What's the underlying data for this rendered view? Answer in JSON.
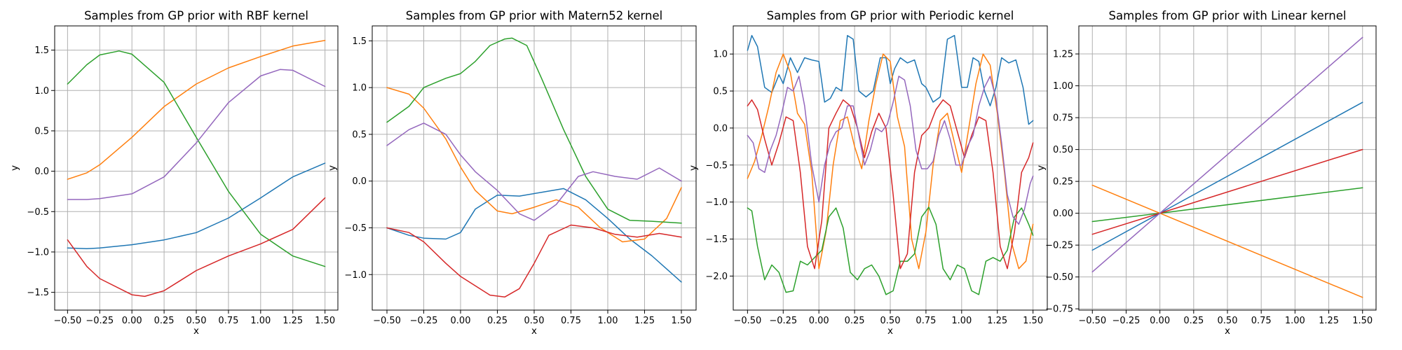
{
  "chart_data": [
    {
      "type": "line",
      "title": "Samples from GP prior with RBF kernel",
      "xlabel": "x",
      "ylabel": "y",
      "xlim": [
        -0.6,
        1.6
      ],
      "ylim": [
        -1.72,
        1.8
      ],
      "xticks": [
        -0.5,
        -0.25,
        0.0,
        0.25,
        0.5,
        0.75,
        1.0,
        1.25,
        1.5
      ],
      "xtick_labels": [
        "−0.50",
        "−0.25",
        "0.00",
        "0.25",
        "0.50",
        "0.75",
        "1.00",
        "1.25",
        "1.50"
      ],
      "yticks": [
        -1.5,
        -1.0,
        -0.5,
        0.0,
        0.5,
        1.0,
        1.5
      ],
      "ytick_labels": [
        "−1.5",
        "−1.0",
        "−0.5",
        "0.0",
        "0.5",
        "1.0",
        "1.5"
      ],
      "grid": true,
      "series": [
        {
          "color": "#1f77b4",
          "x": [
            -0.5,
            -0.35,
            -0.25,
            0.0,
            0.25,
            0.5,
            0.75,
            1.0,
            1.25,
            1.5
          ],
          "y": [
            -0.95,
            -0.96,
            -0.95,
            -0.91,
            -0.85,
            -0.76,
            -0.58,
            -0.33,
            -0.07,
            0.1
          ]
        },
        {
          "color": "#ff7f0e",
          "x": [
            -0.5,
            -0.35,
            -0.25,
            0.0,
            0.25,
            0.5,
            0.75,
            1.0,
            1.25,
            1.5
          ],
          "y": [
            -0.1,
            -0.02,
            0.08,
            0.42,
            0.8,
            1.08,
            1.28,
            1.42,
            1.55,
            1.62
          ]
        },
        {
          "color": "#2ca02c",
          "x": [
            -0.5,
            -0.35,
            -0.25,
            -0.1,
            0.0,
            0.25,
            0.5,
            0.75,
            1.0,
            1.25,
            1.5
          ],
          "y": [
            1.08,
            1.32,
            1.44,
            1.49,
            1.45,
            1.1,
            0.42,
            -0.25,
            -0.78,
            -1.05,
            -1.18
          ]
        },
        {
          "color": "#d62728",
          "x": [
            -0.5,
            -0.35,
            -0.25,
            0.0,
            0.1,
            0.25,
            0.5,
            0.75,
            1.0,
            1.25,
            1.5
          ],
          "y": [
            -0.85,
            -1.18,
            -1.33,
            -1.53,
            -1.55,
            -1.48,
            -1.23,
            -1.05,
            -0.9,
            -0.72,
            -0.33
          ]
        },
        {
          "color": "#9467bd",
          "x": [
            -0.5,
            -0.35,
            -0.25,
            0.0,
            0.25,
            0.5,
            0.75,
            1.0,
            1.15,
            1.25,
            1.5
          ],
          "y": [
            -0.35,
            -0.35,
            -0.34,
            -0.28,
            -0.07,
            0.35,
            0.85,
            1.18,
            1.26,
            1.25,
            1.05
          ]
        }
      ]
    },
    {
      "type": "line",
      "title": "Samples from GP prior with Matern52 kernel",
      "xlabel": "x",
      "ylabel": "y",
      "xlim": [
        -0.6,
        1.6
      ],
      "ylim": [
        -1.38,
        1.66
      ],
      "xticks": [
        -0.5,
        -0.25,
        0.0,
        0.25,
        0.5,
        0.75,
        1.0,
        1.25,
        1.5
      ],
      "xtick_labels": [
        "−0.50",
        "−0.25",
        "0.00",
        "0.25",
        "0.50",
        "0.75",
        "1.00",
        "1.25",
        "1.50"
      ],
      "yticks": [
        -1.0,
        -0.5,
        0.0,
        0.5,
        1.0,
        1.5
      ],
      "ytick_labels": [
        "−1.0",
        "−0.5",
        "0.0",
        "0.5",
        "1.0",
        "1.5"
      ],
      "grid": true,
      "series": [
        {
          "color": "#1f77b4",
          "x": [
            -0.5,
            -0.35,
            -0.25,
            -0.1,
            0.0,
            0.1,
            0.25,
            0.4,
            0.55,
            0.7,
            0.85,
            1.0,
            1.15,
            1.3,
            1.5
          ],
          "y": [
            -0.5,
            -0.58,
            -0.61,
            -0.62,
            -0.55,
            -0.3,
            -0.15,
            -0.16,
            -0.12,
            -0.08,
            -0.2,
            -0.4,
            -0.62,
            -0.8,
            -1.08
          ]
        },
        {
          "color": "#ff7f0e",
          "x": [
            -0.5,
            -0.35,
            -0.25,
            -0.1,
            0.0,
            0.1,
            0.25,
            0.35,
            0.5,
            0.65,
            0.8,
            0.95,
            1.1,
            1.25,
            1.4,
            1.5
          ],
          "y": [
            1.0,
            0.93,
            0.78,
            0.45,
            0.15,
            -0.1,
            -0.32,
            -0.35,
            -0.28,
            -0.2,
            -0.28,
            -0.5,
            -0.65,
            -0.62,
            -0.4,
            -0.07
          ]
        },
        {
          "color": "#2ca02c",
          "x": [
            -0.5,
            -0.35,
            -0.25,
            -0.1,
            0.0,
            0.1,
            0.2,
            0.3,
            0.35,
            0.45,
            0.55,
            0.7,
            0.85,
            1.0,
            1.15,
            1.3,
            1.5
          ],
          "y": [
            0.63,
            0.8,
            1.0,
            1.1,
            1.15,
            1.28,
            1.45,
            1.52,
            1.53,
            1.45,
            1.1,
            0.55,
            0.05,
            -0.3,
            -0.42,
            -0.43,
            -0.45
          ]
        },
        {
          "color": "#d62728",
          "x": [
            -0.5,
            -0.35,
            -0.25,
            -0.1,
            0.0,
            0.1,
            0.2,
            0.3,
            0.4,
            0.5,
            0.6,
            0.75,
            0.9,
            1.05,
            1.2,
            1.35,
            1.5
          ],
          "y": [
            -0.5,
            -0.55,
            -0.65,
            -0.88,
            -1.02,
            -1.12,
            -1.22,
            -1.24,
            -1.15,
            -0.88,
            -0.58,
            -0.47,
            -0.5,
            -0.57,
            -0.6,
            -0.56,
            -0.6
          ]
        },
        {
          "color": "#9467bd",
          "x": [
            -0.5,
            -0.35,
            -0.25,
            -0.1,
            0.0,
            0.1,
            0.25,
            0.4,
            0.5,
            0.65,
            0.8,
            0.9,
            1.05,
            1.2,
            1.35,
            1.5
          ],
          "y": [
            0.38,
            0.55,
            0.62,
            0.5,
            0.28,
            0.1,
            -0.1,
            -0.35,
            -0.42,
            -0.25,
            0.05,
            0.1,
            0.05,
            0.02,
            0.14,
            0.0
          ]
        }
      ]
    },
    {
      "type": "line",
      "title": "Samples from GP prior with Periodic kernel",
      "xlabel": "x",
      "ylabel": "y",
      "xlim": [
        -0.6,
        1.6
      ],
      "ylim": [
        -2.46,
        1.38
      ],
      "xticks": [
        -0.5,
        -0.25,
        0.0,
        0.25,
        0.5,
        0.75,
        1.0,
        1.25,
        1.5
      ],
      "xtick_labels": [
        "−0.50",
        "−0.25",
        "0.00",
        "0.25",
        "0.50",
        "0.75",
        "1.00",
        "1.25",
        "1.50"
      ],
      "yticks": [
        -2.0,
        -1.5,
        -1.0,
        -0.5,
        0.0,
        0.5,
        1.0
      ],
      "ytick_labels": [
        "−2.0",
        "−1.5",
        "−1.0",
        "−0.5",
        "0.0",
        "0.5",
        "1.0"
      ],
      "grid": true,
      "series": [
        {
          "color": "#1f77b4",
          "x": [
            -0.5,
            -0.47,
            -0.43,
            -0.38,
            -0.33,
            -0.28,
            -0.25,
            -0.2,
            -0.15,
            -0.1,
            -0.05,
            0.0,
            0.04,
            0.08,
            0.12,
            0.16,
            0.2,
            0.24,
            0.28,
            0.33,
            0.38,
            0.43,
            0.47,
            0.5,
            0.53,
            0.57,
            0.62,
            0.67,
            0.72,
            0.75,
            0.8,
            0.85,
            0.9,
            0.95,
            1.0,
            1.04,
            1.08,
            1.12,
            1.16,
            1.2,
            1.24,
            1.28,
            1.33,
            1.38,
            1.43,
            1.47,
            1.5
          ],
          "y": [
            1.05,
            1.25,
            1.1,
            0.55,
            0.48,
            0.72,
            0.6,
            0.95,
            0.75,
            0.95,
            0.92,
            0.9,
            0.35,
            0.4,
            0.55,
            0.5,
            1.25,
            1.2,
            0.5,
            0.42,
            0.5,
            0.95,
            0.95,
            0.6,
            0.8,
            0.95,
            0.88,
            0.92,
            0.6,
            0.55,
            0.35,
            0.42,
            1.2,
            1.25,
            0.55,
            0.55,
            0.95,
            0.9,
            0.5,
            0.3,
            0.55,
            0.95,
            0.88,
            0.92,
            0.55,
            0.05,
            0.1
          ]
        },
        {
          "color": "#ff7f0e",
          "x": [
            -0.5,
            -0.45,
            -0.4,
            -0.35,
            -0.3,
            -0.25,
            -0.2,
            -0.15,
            -0.1,
            -0.05,
            0.0,
            0.05,
            0.1,
            0.15,
            0.2,
            0.25,
            0.3,
            0.35,
            0.4,
            0.45,
            0.5,
            0.55,
            0.6,
            0.65,
            0.7,
            0.75,
            0.8,
            0.85,
            0.9,
            0.95,
            1.0,
            1.05,
            1.1,
            1.15,
            1.2,
            1.25,
            1.3,
            1.35,
            1.4,
            1.45,
            1.5
          ],
          "y": [
            -0.68,
            -0.45,
            -0.1,
            0.3,
            0.75,
            1.0,
            0.75,
            0.2,
            0.05,
            -0.6,
            -1.9,
            -1.4,
            -0.5,
            0.1,
            0.15,
            -0.25,
            -0.55,
            0.1,
            0.6,
            1.0,
            0.9,
            0.15,
            -0.25,
            -1.5,
            -1.9,
            -1.4,
            -0.5,
            0.1,
            0.2,
            -0.2,
            -0.6,
            0.0,
            0.6,
            1.0,
            0.85,
            0.2,
            -0.6,
            -1.55,
            -1.9,
            -1.8,
            -1.3
          ]
        },
        {
          "color": "#2ca02c",
          "x": [
            -0.5,
            -0.47,
            -0.43,
            -0.38,
            -0.33,
            -0.28,
            -0.23,
            -0.18,
            -0.13,
            -0.08,
            -0.03,
            0.02,
            0.07,
            0.12,
            0.17,
            0.22,
            0.27,
            0.32,
            0.37,
            0.42,
            0.47,
            0.52,
            0.57,
            0.62,
            0.67,
            0.72,
            0.77,
            0.82,
            0.87,
            0.92,
            0.97,
            1.02,
            1.07,
            1.12,
            1.17,
            1.22,
            1.27,
            1.32,
            1.37,
            1.42,
            1.47,
            1.5
          ],
          "y": [
            -1.08,
            -1.12,
            -1.6,
            -2.05,
            -1.85,
            -1.95,
            -2.22,
            -2.2,
            -1.8,
            -1.85,
            -1.75,
            -1.65,
            -1.2,
            -1.08,
            -1.35,
            -1.95,
            -2.05,
            -1.9,
            -1.85,
            -2.0,
            -2.25,
            -2.2,
            -1.8,
            -1.8,
            -1.7,
            -1.2,
            -1.07,
            -1.3,
            -1.9,
            -2.05,
            -1.85,
            -1.9,
            -2.2,
            -2.25,
            -1.8,
            -1.75,
            -1.8,
            -1.65,
            -1.2,
            -1.08,
            -1.3,
            -1.45
          ]
        },
        {
          "color": "#d62728",
          "x": [
            -0.5,
            -0.47,
            -0.43,
            -0.38,
            -0.33,
            -0.28,
            -0.23,
            -0.18,
            -0.13,
            -0.08,
            -0.03,
            0.02,
            0.07,
            0.12,
            0.17,
            0.22,
            0.27,
            0.32,
            0.37,
            0.42,
            0.47,
            0.52,
            0.57,
            0.62,
            0.67,
            0.72,
            0.77,
            0.82,
            0.87,
            0.92,
            0.97,
            1.02,
            1.07,
            1.12,
            1.17,
            1.22,
            1.27,
            1.32,
            1.37,
            1.42,
            1.47,
            1.5
          ],
          "y": [
            0.3,
            0.38,
            0.25,
            -0.15,
            -0.5,
            -0.2,
            0.15,
            0.1,
            -0.6,
            -1.6,
            -1.9,
            -1.25,
            0.0,
            0.2,
            0.38,
            0.3,
            0.0,
            -0.4,
            -0.05,
            0.2,
            0.0,
            -0.9,
            -1.9,
            -1.7,
            -0.6,
            -0.1,
            0.0,
            0.25,
            0.38,
            0.3,
            -0.05,
            -0.4,
            -0.1,
            0.15,
            0.1,
            -0.6,
            -1.6,
            -1.9,
            -1.4,
            -0.6,
            -0.4,
            -0.2
          ]
        },
        {
          "color": "#9467bd",
          "x": [
            -0.5,
            -0.46,
            -0.42,
            -0.38,
            -0.34,
            -0.3,
            -0.26,
            -0.22,
            -0.18,
            -0.14,
            -0.1,
            -0.05,
            0.0,
            0.04,
            0.08,
            0.12,
            0.16,
            0.2,
            0.24,
            0.28,
            0.32,
            0.36,
            0.4,
            0.44,
            0.48,
            0.52,
            0.56,
            0.6,
            0.64,
            0.68,
            0.72,
            0.76,
            0.8,
            0.84,
            0.88,
            0.92,
            0.96,
            1.0,
            1.04,
            1.08,
            1.12,
            1.16,
            1.2,
            1.24,
            1.28,
            1.32,
            1.36,
            1.4,
            1.44,
            1.48,
            1.5
          ],
          "y": [
            -0.1,
            -0.2,
            -0.55,
            -0.6,
            -0.3,
            -0.1,
            0.2,
            0.55,
            0.5,
            0.7,
            0.3,
            -0.5,
            -1.0,
            -0.5,
            -0.2,
            -0.05,
            0.0,
            0.3,
            0.3,
            -0.1,
            -0.5,
            -0.3,
            0.0,
            -0.05,
            0.05,
            0.35,
            0.7,
            0.65,
            0.3,
            -0.3,
            -0.55,
            -0.55,
            -0.45,
            -0.1,
            0.1,
            -0.15,
            -0.5,
            -0.5,
            -0.25,
            -0.1,
            0.3,
            0.55,
            0.7,
            0.4,
            -0.2,
            -0.9,
            -1.2,
            -1.3,
            -1.1,
            -0.75,
            -0.65
          ]
        }
      ]
    },
    {
      "type": "line",
      "title": "Samples from GP prior with Linear kernel",
      "xlabel": "x",
      "ylabel": "y",
      "xlim": [
        -0.6,
        1.6
      ],
      "ylim": [
        -0.76,
        1.47
      ],
      "xticks": [
        -0.5,
        -0.25,
        0.0,
        0.25,
        0.5,
        0.75,
        1.0,
        1.25,
        1.5
      ],
      "xtick_labels": [
        "−0.50",
        "−0.25",
        "0.00",
        "0.25",
        "0.50",
        "0.75",
        "1.00",
        "1.25",
        "1.50"
      ],
      "yticks": [
        -0.75,
        -0.5,
        -0.25,
        0.0,
        0.25,
        0.5,
        0.75,
        1.0,
        1.25
      ],
      "ytick_labels": [
        "−0.75",
        "−0.50",
        "−0.25",
        "0.00",
        "0.25",
        "0.50",
        "0.75",
        "1.00",
        "1.25"
      ],
      "grid": true,
      "series": [
        {
          "color": "#1f77b4",
          "x": [
            -0.5,
            0.0,
            1.5
          ],
          "y": [
            -0.29,
            0.0,
            0.87
          ]
        },
        {
          "color": "#ff7f0e",
          "x": [
            -0.5,
            0.0,
            1.5
          ],
          "y": [
            0.22,
            0.0,
            -0.66
          ]
        },
        {
          "color": "#2ca02c",
          "x": [
            -0.5,
            0.0,
            1.5
          ],
          "y": [
            -0.065,
            0.0,
            0.2
          ]
        },
        {
          "color": "#d62728",
          "x": [
            -0.5,
            0.0,
            1.5
          ],
          "y": [
            -0.165,
            0.0,
            0.5
          ]
        },
        {
          "color": "#9467bd",
          "x": [
            -0.5,
            0.0,
            1.5
          ],
          "y": [
            -0.46,
            0.0,
            1.38
          ]
        }
      ]
    }
  ]
}
